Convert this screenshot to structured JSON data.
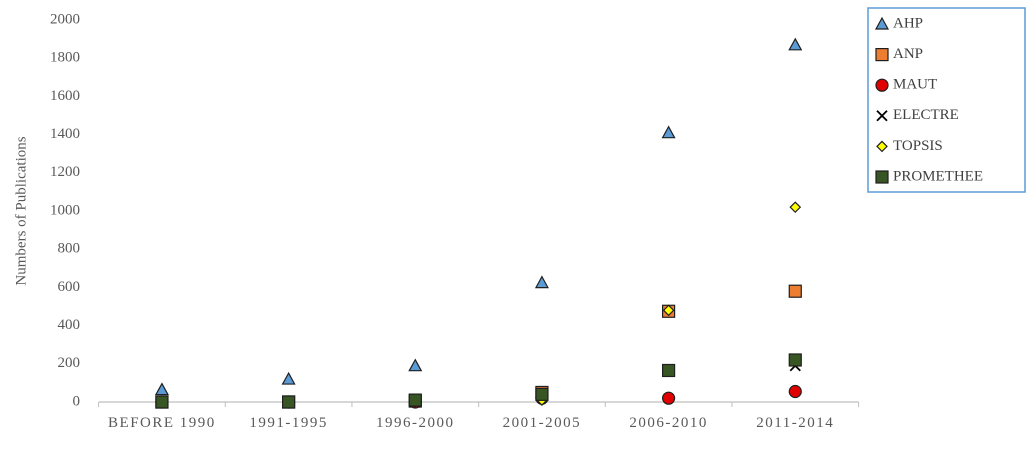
{
  "chart_data": {
    "type": "scatter",
    "y_label": "Numbers of Publications",
    "categories": [
      "BEFORE 1990",
      "1991-1995",
      "1996-2000",
      "2001-2005",
      "2006-2010",
      "2011-2014"
    ],
    "ylim": [
      0,
      2000
    ],
    "yticks": [
      0,
      200,
      400,
      600,
      800,
      1000,
      1200,
      1400,
      1600,
      1800,
      2000
    ],
    "series": [
      {
        "name": "AHP",
        "color": "#5b9bd5",
        "marker": "triangle",
        "values": [
          65,
          120,
          190,
          625,
          1410,
          1870
        ]
      },
      {
        "name": "ANP",
        "color": "#ed7d31",
        "marker": "square",
        "values": [
          0,
          0,
          5,
          50,
          475,
          580
        ]
      },
      {
        "name": "MAUT",
        "color": "#e00000",
        "marker": "circle",
        "values": [
          0,
          0,
          0,
          20,
          20,
          55
        ]
      },
      {
        "name": "ELECTRE",
        "color": "#000000",
        "marker": "x",
        "values": [
          0,
          0,
          0,
          30,
          170,
          190
        ]
      },
      {
        "name": "TOPSIS",
        "color": "#ffff00",
        "marker": "diamond",
        "values": [
          0,
          0,
          0,
          10,
          480,
          1020
        ]
      },
      {
        "name": "PROMETHEE",
        "color": "#375623",
        "marker": "square",
        "values": [
          0,
          0,
          10,
          40,
          165,
          220
        ]
      }
    ]
  }
}
